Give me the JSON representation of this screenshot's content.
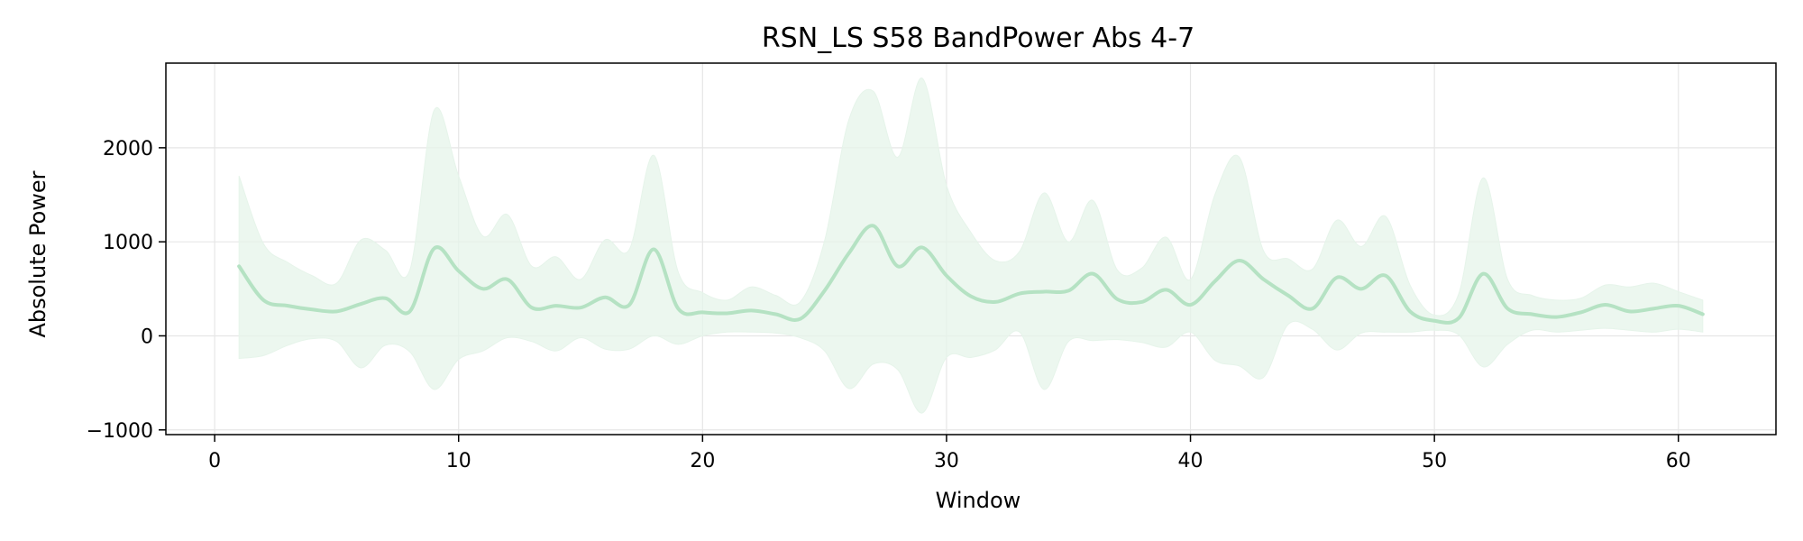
{
  "chart_data": {
    "type": "line",
    "title": "RSN_LS S58 BandPower Abs 4-7",
    "xlabel": "Window",
    "ylabel": "Absolute Power",
    "xlim": [
      -2,
      64
    ],
    "ylim": [
      -1050,
      2900
    ],
    "xticks": [
      0,
      10,
      20,
      30,
      40,
      50,
      60
    ],
    "yticks": [
      -1000,
      0,
      1000,
      2000
    ],
    "xtick_labels": [
      "0",
      "10",
      "20",
      "30",
      "40",
      "50",
      "60"
    ],
    "ytick_labels": [
      "−1000",
      "0",
      "1000",
      "2000"
    ],
    "grid": true,
    "legend": "none",
    "colors": {
      "line": "#b5e2c3",
      "band": "#e6f4ea",
      "grid": "#e6e6e6",
      "axis": "#000000"
    },
    "series": [
      {
        "x": [
          1,
          2,
          3,
          4,
          5,
          6,
          7,
          8,
          9,
          10,
          11,
          12,
          13,
          14,
          15,
          16,
          17,
          18,
          19,
          20,
          21,
          22,
          23,
          24,
          25,
          26,
          27,
          28,
          29,
          30,
          31,
          32,
          33,
          34,
          35,
          36,
          37,
          38,
          39,
          40,
          41,
          42,
          43,
          44,
          45,
          46,
          47,
          48,
          49,
          50,
          51,
          52,
          53,
          54,
          55,
          56,
          57,
          58,
          59,
          60,
          61
        ],
        "mean": [
          740,
          380,
          320,
          280,
          260,
          340,
          400,
          260,
          930,
          690,
          500,
          600,
          300,
          320,
          300,
          410,
          330,
          920,
          290,
          250,
          240,
          270,
          230,
          180,
          480,
          880,
          1170,
          740,
          940,
          640,
          420,
          360,
          450,
          470,
          480,
          660,
          390,
          360,
          490,
          330,
          580,
          800,
          600,
          430,
          290,
          620,
          500,
          640,
          260,
          160,
          190,
          660,
          290,
          230,
          200,
          250,
          330,
          260,
          290,
          320,
          230
        ],
        "upper": [
          1700,
          980,
          780,
          640,
          560,
          1020,
          910,
          700,
          2400,
          1700,
          1060,
          1290,
          740,
          840,
          600,
          1020,
          920,
          1920,
          680,
          460,
          380,
          520,
          430,
          360,
          1010,
          2300,
          2600,
          1900,
          2740,
          1600,
          1100,
          800,
          900,
          1520,
          1000,
          1440,
          700,
          720,
          1050,
          600,
          1500,
          1900,
          900,
          820,
          710,
          1230,
          950,
          1270,
          540,
          220,
          450,
          1680,
          600,
          430,
          380,
          400,
          540,
          520,
          560,
          470,
          380
        ],
        "lower": [
          -240,
          -210,
          -100,
          -30,
          -60,
          -340,
          -100,
          -170,
          -570,
          -250,
          -160,
          -20,
          -60,
          -160,
          -20,
          -140,
          -140,
          0,
          -90,
          0,
          40,
          40,
          30,
          -20,
          -160,
          -560,
          -300,
          -360,
          -820,
          -230,
          -230,
          -150,
          40,
          -570,
          -60,
          -50,
          -40,
          -70,
          -120,
          40,
          -260,
          -320,
          -440,
          120,
          70,
          -150,
          30,
          40,
          40,
          60,
          10,
          -330,
          -90,
          60,
          40,
          60,
          80,
          60,
          40,
          70,
          40
        ]
      }
    ]
  }
}
